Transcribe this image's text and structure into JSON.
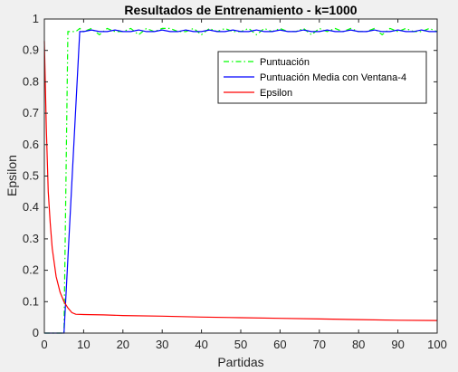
{
  "chart_data": {
    "type": "line",
    "title": "Resultados de Entrenamiento - k=1000",
    "xlabel": "Partidas",
    "ylabel": "Epsilon",
    "xlim": [
      0,
      100
    ],
    "ylim": [
      0,
      1
    ],
    "xticks": [
      "0",
      "10",
      "20",
      "30",
      "40",
      "50",
      "60",
      "70",
      "80",
      "90",
      "100"
    ],
    "yticks": [
      "0",
      "0.1",
      "0.2",
      "0.3",
      "0.4",
      "0.5",
      "0.6",
      "0.7",
      "0.8",
      "0.9",
      "1"
    ],
    "grid": false,
    "legend_position": "top-right",
    "series": [
      {
        "name": "Puntuación",
        "color": "#00ff00",
        "style": "dash-dot",
        "x": [
          0,
          5,
          6,
          7,
          8,
          9,
          10,
          12,
          14,
          16,
          18,
          20,
          22,
          24,
          26,
          28,
          30,
          32,
          34,
          36,
          38,
          40,
          42,
          44,
          46,
          48,
          50,
          52,
          54,
          56,
          58,
          60,
          62,
          64,
          66,
          68,
          70,
          72,
          74,
          76,
          78,
          80,
          82,
          84,
          86,
          88,
          90,
          92,
          94,
          96,
          98,
          100
        ],
        "y": [
          0,
          0,
          0.96,
          0.96,
          0.96,
          0.97,
          0.96,
          0.97,
          0.95,
          0.97,
          0.96,
          0.96,
          0.97,
          0.95,
          0.97,
          0.96,
          0.97,
          0.97,
          0.96,
          0.96,
          0.97,
          0.95,
          0.97,
          0.96,
          0.97,
          0.96,
          0.96,
          0.97,
          0.95,
          0.97,
          0.96,
          0.97,
          0.96,
          0.96,
          0.97,
          0.95,
          0.97,
          0.96,
          0.97,
          0.96,
          0.97,
          0.96,
          0.96,
          0.97,
          0.95,
          0.97,
          0.96,
          0.97,
          0.96,
          0.96,
          0.97,
          0.96
        ]
      },
      {
        "name": "Puntuación Media con Ventana-4",
        "color": "#0000ff",
        "style": "solid",
        "x": [
          0,
          5,
          9,
          10,
          12,
          14,
          16,
          18,
          20,
          22,
          24,
          26,
          28,
          30,
          32,
          34,
          36,
          38,
          40,
          42,
          44,
          46,
          48,
          50,
          52,
          54,
          56,
          58,
          60,
          62,
          64,
          66,
          68,
          70,
          72,
          74,
          76,
          78,
          80,
          82,
          84,
          86,
          88,
          90,
          92,
          94,
          96,
          98,
          100
        ],
        "y": [
          0,
          0,
          0.96,
          0.96,
          0.965,
          0.96,
          0.96,
          0.965,
          0.96,
          0.96,
          0.965,
          0.96,
          0.96,
          0.965,
          0.96,
          0.96,
          0.965,
          0.96,
          0.96,
          0.965,
          0.96,
          0.96,
          0.965,
          0.96,
          0.96,
          0.965,
          0.96,
          0.96,
          0.965,
          0.96,
          0.96,
          0.965,
          0.96,
          0.96,
          0.965,
          0.96,
          0.96,
          0.965,
          0.96,
          0.96,
          0.965,
          0.96,
          0.96,
          0.965,
          0.96,
          0.96,
          0.965,
          0.96,
          0.96
        ]
      },
      {
        "name": "Epsilon",
        "color": "#ff0000",
        "style": "solid",
        "x": [
          0,
          0.5,
          1,
          1.5,
          2,
          3,
          4,
          5,
          6,
          7,
          8,
          10,
          15,
          20,
          30,
          40,
          50,
          60,
          70,
          80,
          90,
          100
        ],
        "y": [
          0.93,
          0.65,
          0.45,
          0.35,
          0.27,
          0.18,
          0.13,
          0.1,
          0.08,
          0.065,
          0.06,
          0.059,
          0.058,
          0.056,
          0.054,
          0.051,
          0.049,
          0.047,
          0.045,
          0.043,
          0.041,
          0.04
        ]
      }
    ]
  }
}
